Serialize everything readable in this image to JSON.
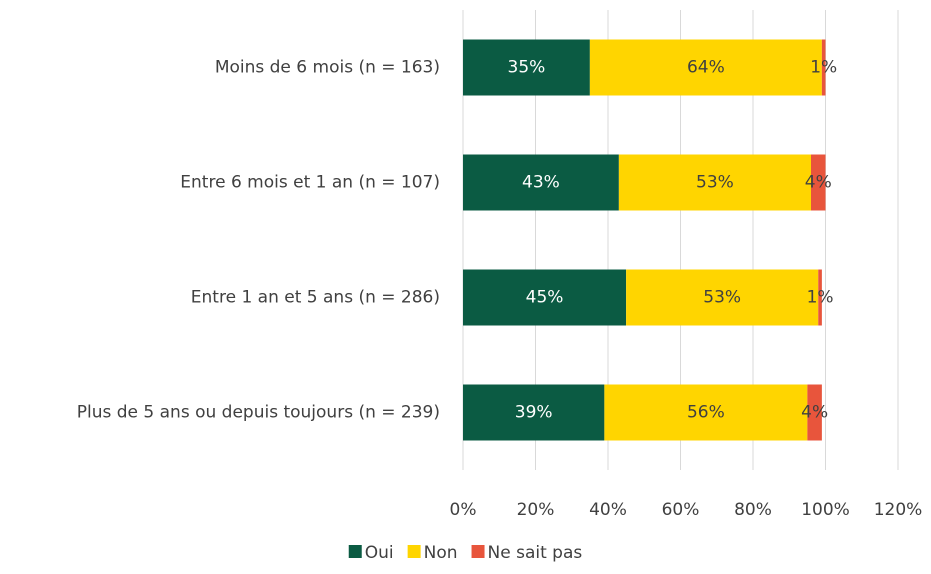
{
  "chart_data": {
    "type": "bar",
    "orientation": "horizontal",
    "stacked": true,
    "categories": [
      "Moins de 6 mois (n = 163)",
      "Entre 6 mois et 1 an (n = 107)",
      "Entre 1 an et 5 ans (n = 286)",
      "Plus de 5 ans ou depuis toujours (n = 239)"
    ],
    "series": [
      {
        "name": "Oui",
        "color": "#0b5b43",
        "label_color": "#ffffff",
        "values": [
          35,
          43,
          45,
          39
        ],
        "value_labels": [
          "35%",
          "43%",
          "45%",
          "39%"
        ]
      },
      {
        "name": "Non",
        "color": "#ffd500",
        "label_color": "#404040",
        "values": [
          64,
          53,
          53,
          56
        ],
        "value_labels": [
          "64%",
          "53%",
          "53%",
          "56%"
        ]
      },
      {
        "name": "Ne sait pas",
        "color": "#e8553c",
        "label_color": "#404040",
        "values": [
          1,
          4,
          1,
          4
        ],
        "value_labels": [
          "1%",
          "4%",
          "1%",
          "4%"
        ]
      }
    ],
    "xlim": [
      0,
      120
    ],
    "xticks": [
      {
        "value": 0,
        "label": "0%"
      },
      {
        "value": 20,
        "label": "20%"
      },
      {
        "value": 40,
        "label": "40%"
      },
      {
        "value": 60,
        "label": "60%"
      },
      {
        "value": 80,
        "label": "80%"
      },
      {
        "value": 100,
        "label": "100%"
      },
      {
        "value": 120,
        "label": "120%"
      }
    ],
    "grid": true,
    "legend": "bottom"
  }
}
